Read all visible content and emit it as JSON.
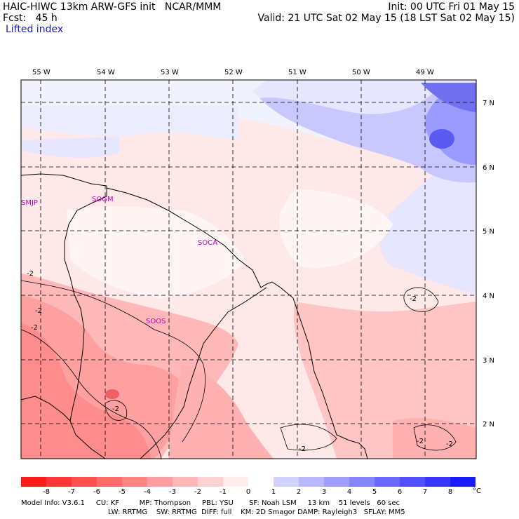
{
  "header": {
    "model_line": "HAIC-HIWC 13km ARW-GFS init   NCAR/MMM",
    "fcst_line": "Fcst:   45 h",
    "field_name": "Lifted index",
    "init_line": "Init: 00 UTC Fri 01 May 15",
    "valid_line": "Valid: 21 UTC Sat 02 May 15 (18 LST Sat 02 May 15)"
  },
  "map": {
    "lon_labels": [
      "55 W",
      "54 W",
      "53 W",
      "52 W",
      "51 W",
      "50 W",
      "49 W"
    ],
    "lat_labels": [
      "7 N",
      "6 N",
      "5 N",
      "4 N",
      "3 N",
      "2 N"
    ],
    "stations": [
      "SMJP",
      "SOGM",
      "SOCA",
      "SOOS"
    ],
    "contour_label": "-2",
    "colors": {
      "border": "#000000",
      "grid": "#000000",
      "station_text": "#c000c0",
      "blue_dark": "#5a5af0",
      "blue_mid": "#9a9aff",
      "blue_light": "#c8c8ff",
      "blue_faint": "#e6e6ff",
      "white": "#ffffff",
      "pink_faint": "#ffe8e8",
      "pink_light": "#ffc8c8",
      "pink_mid": "#ffa8a8",
      "red_mid": "#ff8888",
      "red_dark": "#f06060"
    }
  },
  "legend": {
    "labels": [
      "-8",
      "-7",
      "-6",
      "-5",
      "-4",
      "-3",
      "-2",
      "-1",
      "0",
      "1",
      "2",
      "3",
      "4",
      "5",
      "6",
      "7",
      "8"
    ],
    "unit": "°C",
    "colors": [
      "#ff1a1a",
      "#ff3636",
      "#ff5050",
      "#ff6a6a",
      "#ff8484",
      "#ff9e9e",
      "#ffb8b8",
      "#ffd2d2",
      "#ffecec",
      "#ffffff",
      "#d2d2ff",
      "#b8b8ff",
      "#9e9eff",
      "#8484ff",
      "#6a6aff",
      "#5050ff",
      "#3636ff",
      "#1a1aff"
    ]
  },
  "footer": {
    "line1": "Model Info: V3.6.1     CU: KF         MP: Thompson     PBL: YSU       SF: Noah LSM     13 km    51 levels   60 sec",
    "line2": "LW: RRTMG    SW: RRTMG  DIFF: full    KM: 2D Smagor DAMP: Rayleigh3   SFLAY: MM5"
  }
}
